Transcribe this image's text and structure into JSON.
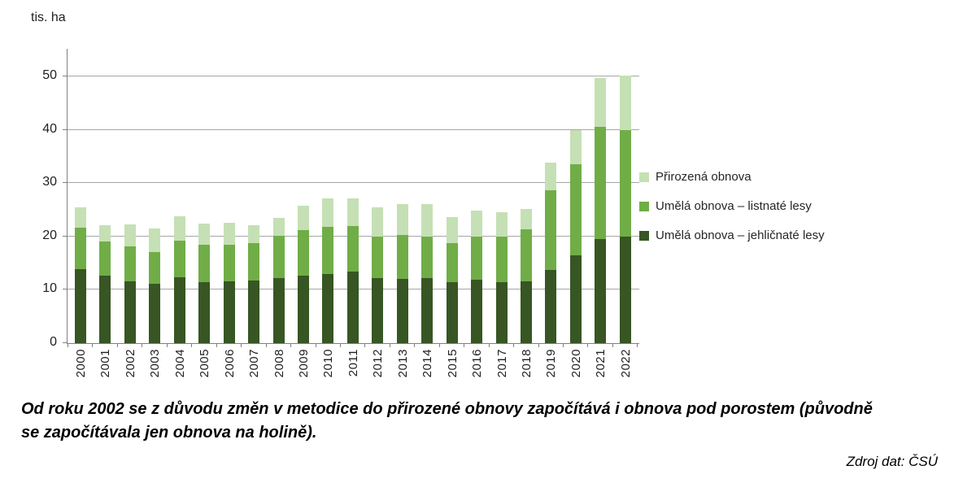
{
  "page": {
    "y_axis_title": "tis. ha",
    "note_line1": "Od roku 2002 se z důvodu změn v metodice do přirozené obnovy započítává i obnova pod porostem (původně",
    "note_line2": "se započítávala jen obnova na holině).",
    "source": "Zdroj dat: ČSÚ"
  },
  "colors": {
    "natural_regeneration": "#c5e0b4",
    "artificial_deciduous": "#70ad47",
    "artificial_coniferous": "#375623",
    "gridline": "#a6a6a6",
    "axis": "#808080",
    "text": "#1f1f1f"
  },
  "chart_data": {
    "type": "bar",
    "stacked": true,
    "unit": "tis. ha",
    "title": "",
    "xlabel": "",
    "ylabel": "tis. ha",
    "ylim": [
      0,
      50
    ],
    "yticks": [
      0,
      10,
      20,
      30,
      40,
      50
    ],
    "grid": true,
    "legend_position": "right",
    "categories": [
      "2000",
      "2001",
      "2002",
      "2003",
      "2004",
      "2005",
      "2006",
      "2007",
      "2008",
      "2009",
      "2010",
      "2011",
      "2012",
      "2013",
      "2014",
      "2015",
      "2016",
      "2017",
      "2018",
      "2019",
      "2020",
      "2021",
      "2022"
    ],
    "series": [
      {
        "name": "Umělá obnova – jehličnaté lesy",
        "color": "#375623",
        "values": [
          13.8,
          12.6,
          11.6,
          11.1,
          12.3,
          11.5,
          11.6,
          11.7,
          12.2,
          12.7,
          13.0,
          13.4,
          12.2,
          12.1,
          12.2,
          11.4,
          11.9,
          11.4,
          11.6,
          13.7,
          16.5,
          19.5,
          19.9
        ]
      },
      {
        "name": "Umělá obnova – listnaté lesy",
        "color": "#70ad47",
        "values": [
          7.9,
          6.4,
          6.6,
          6.0,
          6.9,
          6.9,
          6.9,
          7.0,
          7.9,
          8.5,
          8.8,
          8.5,
          7.8,
          8.2,
          7.8,
          7.4,
          8.1,
          8.6,
          9.7,
          14.9,
          17.0,
          21.0,
          20.0
        ]
      },
      {
        "name": "Přirozená obnova",
        "color": "#c5e0b4",
        "values": [
          3.8,
          3.1,
          4.1,
          4.4,
          4.6,
          4.0,
          4.1,
          3.4,
          3.4,
          4.5,
          5.4,
          5.2,
          5.5,
          5.7,
          6.0,
          4.8,
          4.8,
          4.5,
          3.9,
          5.2,
          6.4,
          9.2,
          10.3
        ]
      }
    ],
    "legend": [
      {
        "label": "Přirozená obnova",
        "color": "#c5e0b4"
      },
      {
        "label": "Umělá obnova –  listnaté lesy",
        "color": "#70ad47"
      },
      {
        "label": "Umělá obnova – jehličnaté lesy",
        "color": "#375623"
      }
    ]
  }
}
